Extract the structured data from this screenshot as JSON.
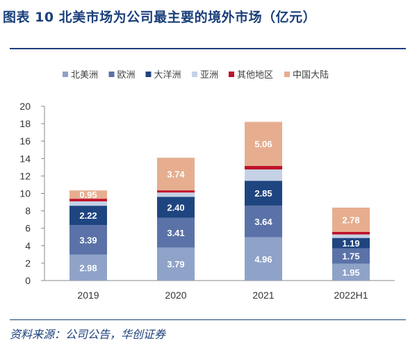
{
  "title": "图表 10  北美市场为公司最主要的境外市场（亿元）",
  "source": "资料来源：公司公告，华创证券",
  "chart_data": {
    "type": "bar",
    "stacked": true,
    "categories": [
      "2019",
      "2020",
      "2021",
      "2022H1"
    ],
    "ylim": [
      0,
      20
    ],
    "yticks": [
      0,
      2,
      4,
      6,
      8,
      10,
      12,
      14,
      16,
      18,
      20
    ],
    "legend_position": "top",
    "series": [
      {
        "name": "北美洲",
        "color": "#8fa3c9",
        "label_color": "#ffffff",
        "values": [
          2.98,
          3.79,
          4.96,
          1.95
        ],
        "labels": [
          "2.98",
          "3.79",
          "4.96",
          "1.95"
        ]
      },
      {
        "name": "欧洲",
        "color": "#5b72a8",
        "label_color": "#ffffff",
        "values": [
          3.39,
          3.41,
          3.64,
          1.75
        ],
        "labels": [
          "3.39",
          "3.41",
          "3.64",
          "1.75"
        ]
      },
      {
        "name": "大洋洲",
        "color": "#1f4580",
        "label_color": "#ffffff",
        "values": [
          2.22,
          2.4,
          2.85,
          1.19
        ],
        "labels": [
          "2.22",
          "2.40",
          "2.85",
          "1.19"
        ]
      },
      {
        "name": "亚洲",
        "color": "#c5d1e6",
        "label_color": "#ffffff",
        "values": [
          0.5,
          0.5,
          1.3,
          0.4
        ],
        "labels": [
          "",
          "",
          "",
          ""
        ]
      },
      {
        "name": "其他地区",
        "color": "#c0112a",
        "label_color": "#ffffff",
        "values": [
          0.3,
          0.25,
          0.4,
          0.3
        ],
        "labels": [
          "",
          "",
          "",
          ""
        ]
      },
      {
        "name": "中国大陆",
        "color": "#e6ae8f",
        "label_color": "#ffffff",
        "values": [
          0.95,
          3.74,
          5.06,
          2.78
        ],
        "labels": [
          "0.95",
          "3.74",
          "5.06",
          "2.78"
        ]
      }
    ]
  }
}
